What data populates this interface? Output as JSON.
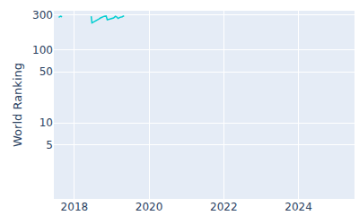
{
  "chart_data": {
    "type": "line",
    "y_label": "World Ranking",
    "x": [
      2017.58,
      2017.63,
      2017.67,
      null,
      2018.45,
      2018.47,
      2018.5,
      2018.55,
      2018.6,
      2018.65,
      2018.7,
      2018.75,
      2018.8,
      2018.85,
      2018.88,
      2018.95,
      2019.0,
      2019.05,
      2019.1,
      2019.13,
      2019.17,
      2019.22,
      2019.28,
      2019.33
    ],
    "series": [
      {
        "name": "World Ranking",
        "color": "#00ced1",
        "values": [
          280,
          290,
          285,
          null,
          290,
          235,
          240,
          250,
          255,
          265,
          275,
          285,
          290,
          292,
          260,
          265,
          270,
          275,
          290,
          285,
          270,
          280,
          285,
          295
        ]
      }
    ],
    "log": "y",
    "xlim": [
      2017.45,
      2025.5
    ],
    "xticks": [
      2018,
      2020,
      2022,
      2024
    ],
    "ylim": [
      0.9,
      345
    ],
    "yticks": [
      5,
      10,
      50,
      100,
      300
    ],
    "grid": true
  }
}
